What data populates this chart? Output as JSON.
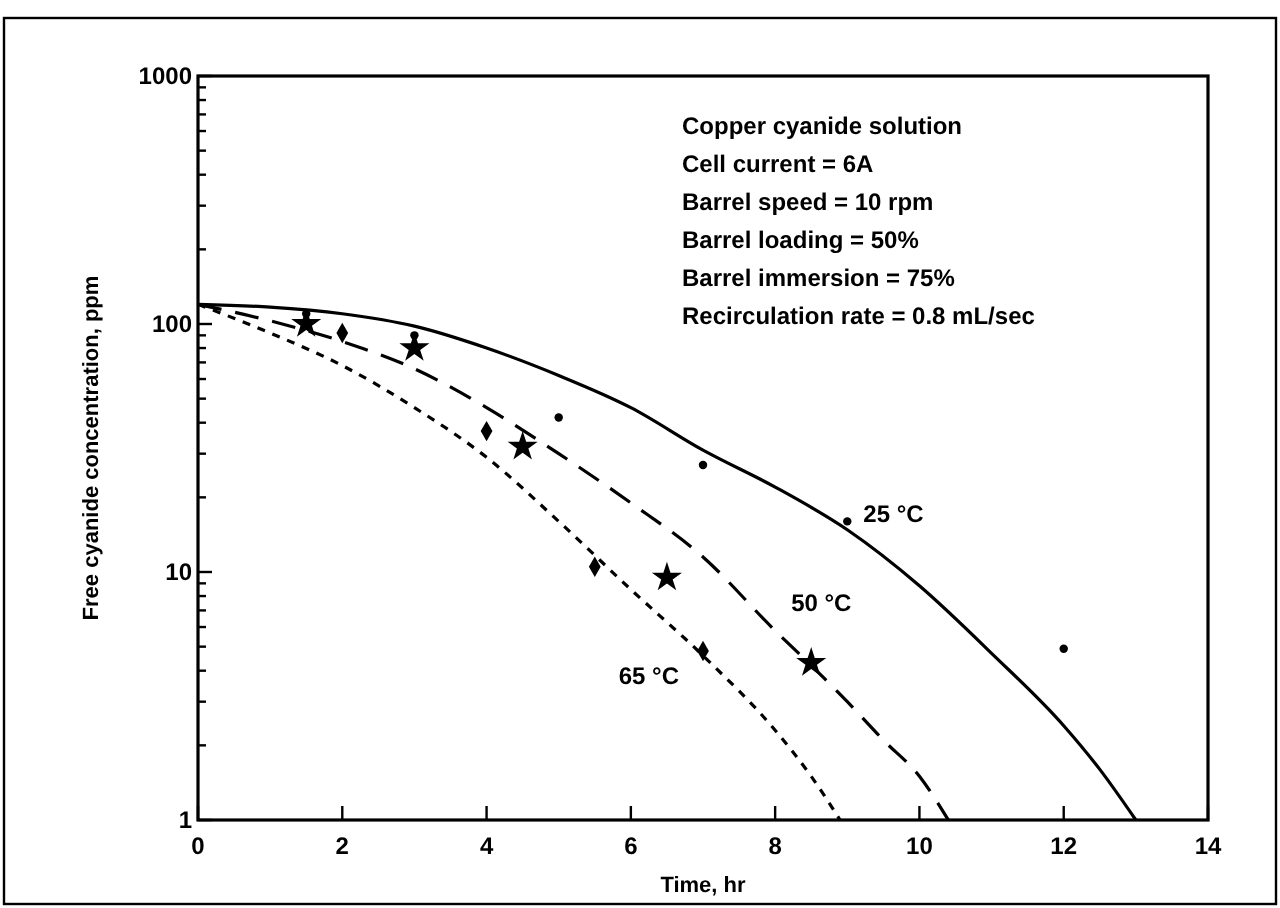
{
  "chart_data": {
    "type": "line",
    "xlabel": "Time, hr",
    "ylabel": "Free cyanide concentration, ppm",
    "log": "y",
    "grid": false,
    "xlim": [
      0,
      14
    ],
    "xticks": [
      0,
      2,
      4,
      6,
      8,
      10,
      12,
      14
    ],
    "ylim": [
      1,
      1000
    ],
    "yticks": [
      1,
      {
        "value": 2,
        "label": null
      },
      {
        "value": 3,
        "label": null
      },
      {
        "value": 4,
        "label": null
      },
      {
        "value": 5,
        "label": null
      },
      {
        "value": 6,
        "label": null
      },
      {
        "value": 7,
        "label": null
      },
      {
        "value": 8,
        "label": null
      },
      {
        "value": 9,
        "label": null
      },
      10,
      {
        "value": 20,
        "label": null
      },
      {
        "value": 30,
        "label": null
      },
      {
        "value": 40,
        "label": null
      },
      {
        "value": 50,
        "label": null
      },
      {
        "value": 60,
        "label": null
      },
      {
        "value": 70,
        "label": null
      },
      {
        "value": 80,
        "label": null
      },
      {
        "value": 90,
        "label": null
      },
      100,
      {
        "value": 200,
        "label": null
      },
      {
        "value": 300,
        "label": null
      },
      {
        "value": 400,
        "label": null
      },
      {
        "value": 500,
        "label": null
      },
      {
        "value": 600,
        "label": null
      },
      {
        "value": 700,
        "label": null
      },
      {
        "value": 800,
        "label": null
      },
      {
        "value": 900,
        "label": null
      },
      1000
    ],
    "series": [
      {
        "name": "25 °C",
        "color": "#000000",
        "line_style": "solid",
        "x": [
          0,
          1,
          2,
          3,
          4,
          5,
          6,
          7,
          8,
          9,
          10,
          11,
          12,
          12.5,
          13
        ],
        "values": [
          120,
          117,
          110,
          98,
          80,
          62,
          46,
          31,
          22,
          14.8,
          8.8,
          4.7,
          2.4,
          1.6,
          1
        ]
      },
      {
        "name": "50 °C",
        "color": "#000000",
        "line_style": "dashed",
        "x": [
          0,
          1,
          2,
          3,
          4,
          5,
          6,
          7,
          8,
          8.5,
          9,
          9.5,
          10,
          10.4
        ],
        "values": [
          120,
          103,
          85,
          66,
          46,
          30,
          19,
          11.5,
          5.8,
          4.2,
          3,
          2.1,
          1.5,
          1
        ]
      },
      {
        "name": "65 °C",
        "color": "#000000",
        "line_style": "dotted",
        "x": [
          0,
          1,
          2,
          3,
          4,
          5,
          6,
          7,
          8,
          8.5,
          8.9
        ],
        "values": [
          120,
          92,
          68,
          46,
          29,
          16,
          8.5,
          4.6,
          2.3,
          1.5,
          1
        ]
      },
      {
        "type": "scatter",
        "color": "#000000",
        "marker": "circle",
        "x": [
          1.5,
          3,
          5,
          7,
          9,
          12
        ],
        "values": [
          110,
          90,
          42,
          27,
          16,
          4.9
        ]
      },
      {
        "type": "scatter",
        "color": "#000000",
        "marker": "star",
        "x": [
          1.5,
          3,
          4.5,
          6.5,
          8.5
        ],
        "values": [
          100,
          80,
          32,
          9.5,
          4.3
        ]
      },
      {
        "type": "scatter",
        "color": "#000000",
        "marker": "diamond",
        "x": [
          2,
          4,
          5.5,
          7
        ],
        "values": [
          92,
          37,
          10.5,
          4.8
        ]
      }
    ],
    "annotations": [
      "Copper cyanide solution",
      "Cell current = 6A",
      "Barrel speed = 10 rpm",
      "Barrel loading = 50%",
      "Barrel immersion = 75%",
      "Recirculation rate = 0.8 mL/sec"
    ]
  }
}
